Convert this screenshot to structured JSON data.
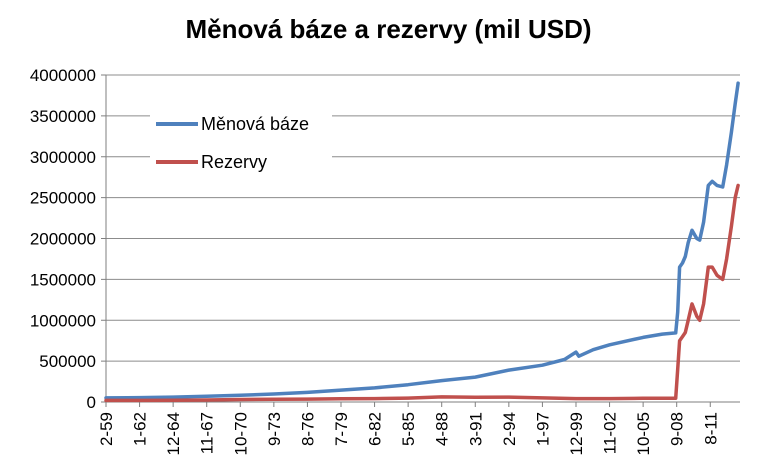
{
  "chart_data": {
    "type": "line",
    "title": "Měnová báze a rezervy (mil USD)",
    "xlabel": "",
    "ylabel": "",
    "ylim": [
      0,
      4000000
    ],
    "y_ticks": [
      0,
      500000,
      1000000,
      1500000,
      2000000,
      2500000,
      3000000,
      3500000,
      4000000
    ],
    "y_tick_labels": [
      "0",
      "500000",
      "1000000",
      "1500000",
      "2000000",
      "2500000",
      "3000000",
      "3500000",
      "4000000"
    ],
    "x_tick_labels": [
      "2-59",
      "1-62",
      "12-64",
      "11-67",
      "10-70",
      "9-73",
      "8-76",
      "7-79",
      "6-82",
      "5-85",
      "4-88",
      "3-91",
      "2-94",
      "1-97",
      "12-99",
      "11-02",
      "10-05",
      "9-08",
      "8-11"
    ],
    "grid": "horizontal",
    "legend_position": "top-left",
    "series": [
      {
        "name": "Měnová báze",
        "color": "#4F81BD",
        "points": [
          [
            "1959-02",
            50000
          ],
          [
            "1962-01",
            54000
          ],
          [
            "1964-12",
            60000
          ],
          [
            "1967-11",
            70000
          ],
          [
            "1970-10",
            82000
          ],
          [
            "1973-09",
            98000
          ],
          [
            "1976-08",
            118000
          ],
          [
            "1979-07",
            145000
          ],
          [
            "1982-06",
            172000
          ],
          [
            "1985-05",
            212000
          ],
          [
            "1988-04",
            262000
          ],
          [
            "1991-03",
            305000
          ],
          [
            "1994-02",
            390000
          ],
          [
            "1997-01",
            450000
          ],
          [
            "1998-12",
            520000
          ],
          [
            "1999-12",
            610000
          ],
          [
            "2000-03",
            560000
          ],
          [
            "2001-06",
            640000
          ],
          [
            "2002-11",
            700000
          ],
          [
            "2005-10",
            790000
          ],
          [
            "2007-06",
            830000
          ],
          [
            "2008-08",
            845000
          ],
          [
            "2008-10",
            1100000
          ],
          [
            "2008-12",
            1650000
          ],
          [
            "2009-03",
            1700000
          ],
          [
            "2009-06",
            1780000
          ],
          [
            "2009-09",
            1950000
          ],
          [
            "2010-01",
            2100000
          ],
          [
            "2010-06",
            2000000
          ],
          [
            "2010-09",
            1980000
          ],
          [
            "2011-01",
            2200000
          ],
          [
            "2011-06",
            2650000
          ],
          [
            "2011-10",
            2700000
          ],
          [
            "2012-03",
            2650000
          ],
          [
            "2012-09",
            2630000
          ],
          [
            "2013-01",
            2900000
          ],
          [
            "2013-06",
            3300000
          ],
          [
            "2013-10",
            3650000
          ],
          [
            "2014-01",
            3900000
          ]
        ]
      },
      {
        "name": "Rezervy",
        "color": "#C0504D",
        "points": [
          [
            "1959-02",
            19000
          ],
          [
            "1962-01",
            19000
          ],
          [
            "1964-12",
            21000
          ],
          [
            "1967-11",
            25000
          ],
          [
            "1970-10",
            30000
          ],
          [
            "1973-09",
            34000
          ],
          [
            "1976-08",
            36000
          ],
          [
            "1979-07",
            40000
          ],
          [
            "1982-06",
            42000
          ],
          [
            "1985-05",
            48000
          ],
          [
            "1988-04",
            62000
          ],
          [
            "1991-03",
            58000
          ],
          [
            "1994-02",
            60000
          ],
          [
            "1997-01",
            50000
          ],
          [
            "1999-12",
            42000
          ],
          [
            "2002-11",
            42000
          ],
          [
            "2005-10",
            45000
          ],
          [
            "2008-08",
            45000
          ],
          [
            "2008-10",
            400000
          ],
          [
            "2008-12",
            750000
          ],
          [
            "2009-03",
            800000
          ],
          [
            "2009-06",
            850000
          ],
          [
            "2009-09",
            1000000
          ],
          [
            "2010-01",
            1200000
          ],
          [
            "2010-06",
            1050000
          ],
          [
            "2010-09",
            1000000
          ],
          [
            "2011-01",
            1200000
          ],
          [
            "2011-06",
            1650000
          ],
          [
            "2011-10",
            1650000
          ],
          [
            "2012-03",
            1550000
          ],
          [
            "2012-09",
            1500000
          ],
          [
            "2013-01",
            1750000
          ],
          [
            "2013-06",
            2150000
          ],
          [
            "2013-10",
            2500000
          ],
          [
            "2014-01",
            2650000
          ]
        ]
      }
    ]
  }
}
